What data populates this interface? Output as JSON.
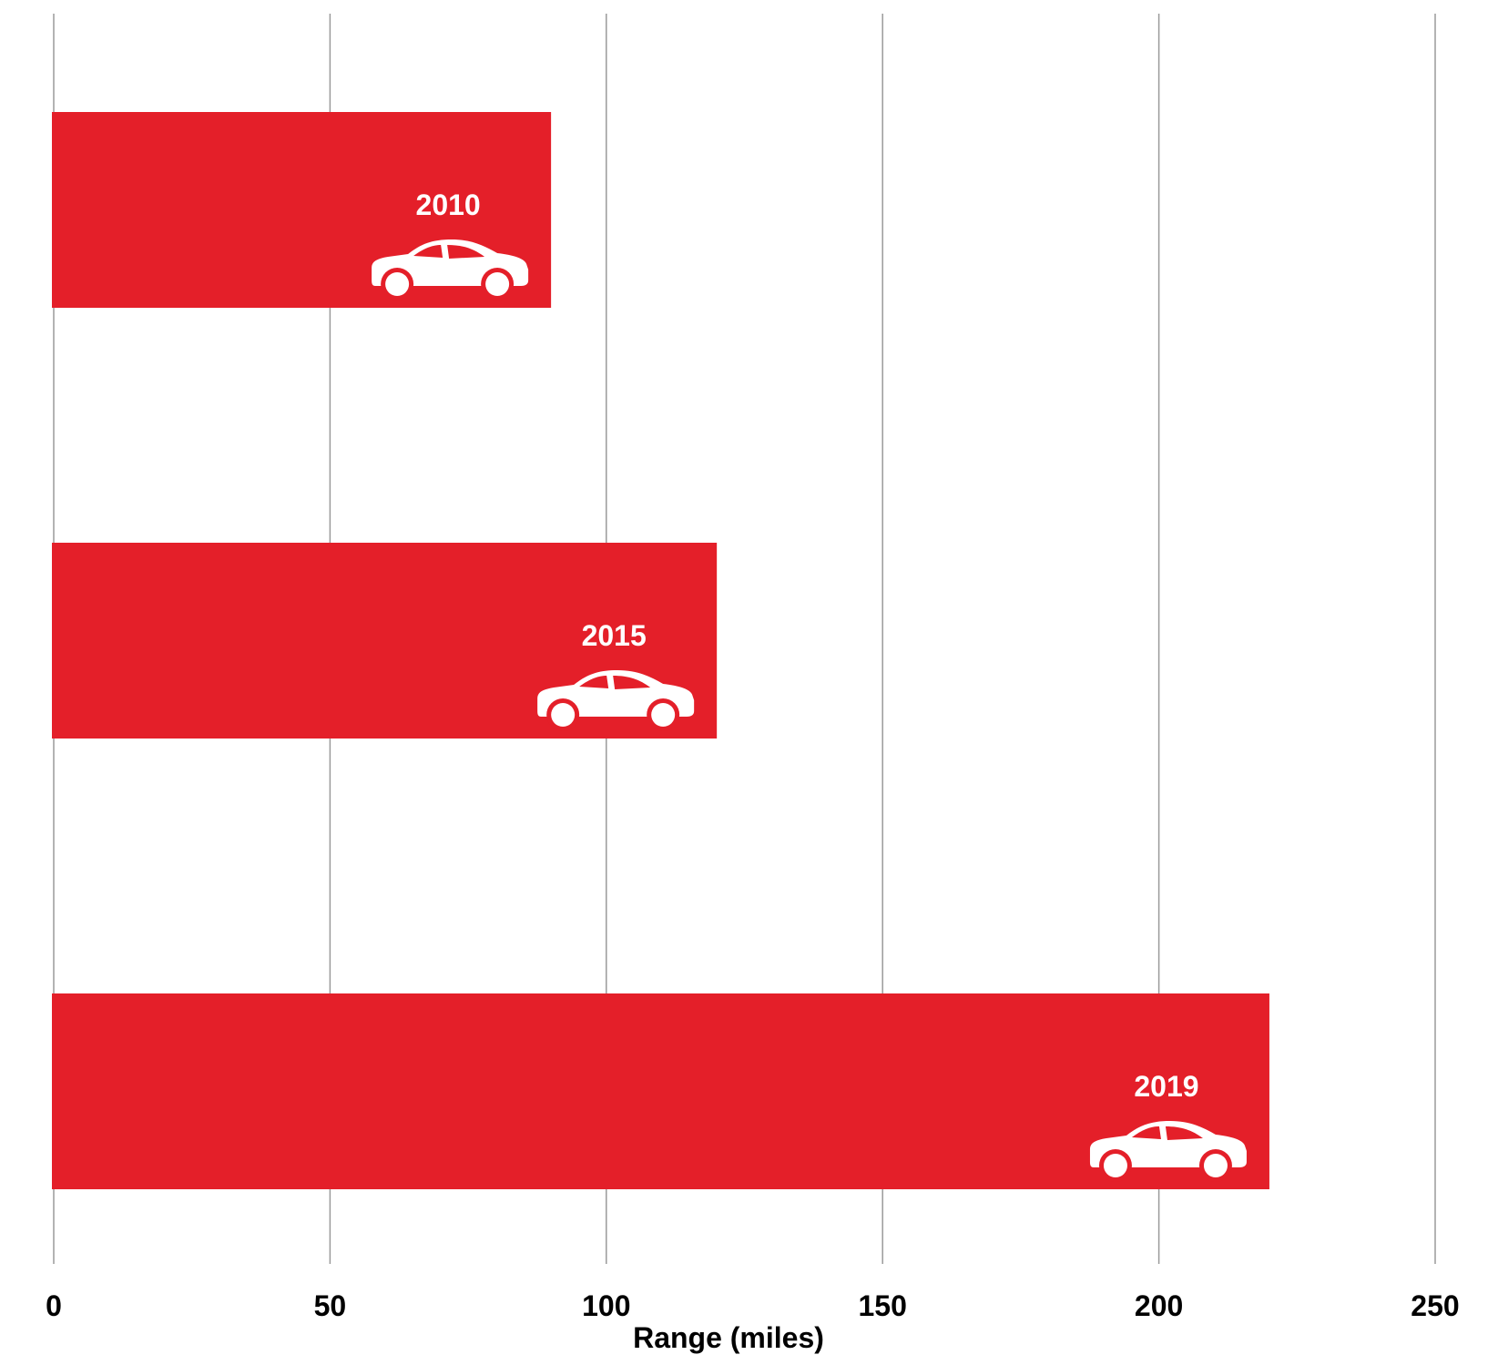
{
  "chart_data": {
    "type": "bar",
    "orientation": "horizontal",
    "categories": [
      "2010",
      "2015",
      "2019"
    ],
    "values": [
      90,
      120,
      220
    ],
    "title": "",
    "xlabel": "Range (miles)",
    "ylabel": "",
    "xlim": [
      0,
      250
    ],
    "xticks": [
      "0",
      "50",
      "100",
      "150",
      "200",
      "250"
    ],
    "grid": "vertical",
    "bar_color": "#e41f29",
    "label_color": "#ffffff",
    "bar_icon": "car-icon"
  }
}
